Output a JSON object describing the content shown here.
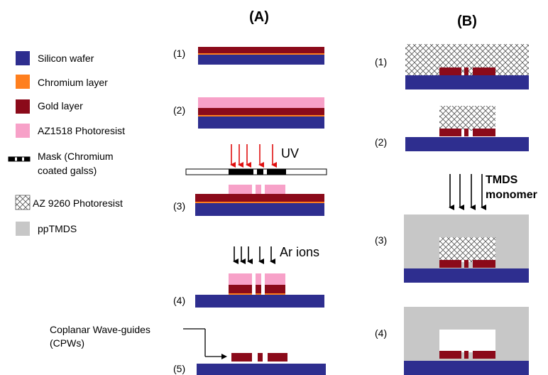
{
  "panels": {
    "a_title": "(A)",
    "b_title": "(B)"
  },
  "legend": {
    "items": [
      {
        "label": "Silicon wafer",
        "color": "#2e2e8f",
        "icon": "silicon-swatch"
      },
      {
        "label": "Chromium layer",
        "color": "#ff7f1e",
        "icon": "chromium-swatch"
      },
      {
        "label": "Gold layer",
        "color": "#8b0a1a",
        "icon": "gold-swatch"
      },
      {
        "label": "AZ1518 Photoresist",
        "color": "#f7a1c8",
        "icon": "az1518-swatch"
      },
      {
        "label_line1": "Mask (Chromium",
        "label_line2": "coated galss)",
        "icon": "mask-swatch"
      },
      {
        "label": "AZ 9260 Photoresist",
        "icon": "crosshatch-swatch"
      },
      {
        "label": "ppTMDS",
        "color": "#c7c7c7",
        "icon": "pptmds-swatch"
      }
    ]
  },
  "steps_a": [
    "(1)",
    "(2)",
    "(3)",
    "(4)",
    "(5)"
  ],
  "steps_b": [
    "(1)",
    "(2)",
    "(3)",
    "(4)"
  ],
  "annotations": {
    "uv": "UV",
    "ar_ions": "Ar ions",
    "tmds_line1": "TMDS",
    "tmds_line2": "monomer",
    "cpw_line1": "Coplanar Wave-guides",
    "cpw_line2": "(CPWs)"
  },
  "colors": {
    "silicon": "#2e2e8f",
    "chromium": "#ff7f1e",
    "gold": "#8b0a1a",
    "az1518": "#f7a1c8",
    "pptmds": "#c7c7c7",
    "uv_arrow": "#e01010"
  }
}
